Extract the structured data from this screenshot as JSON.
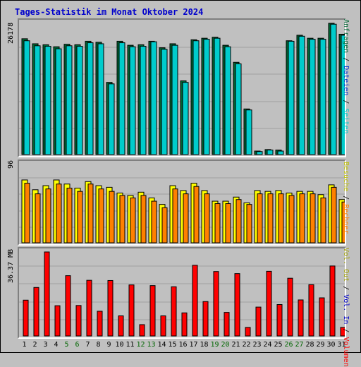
{
  "title": "Tages-Statistik im Monat Oktober 2024",
  "colors": {
    "background": "#c0c0c0",
    "title": "#0000cc",
    "anfragen": "#006633",
    "dateien": "#0033cc",
    "seiten": "#00cccc",
    "besuche": "#ffff00",
    "rechner": "#ff8000",
    "vol_out": "#c0c000",
    "vol_in": "#0000cc",
    "volumen": "#ff0000",
    "weekend_day": "#006600"
  },
  "labels": {
    "top_max": "26178",
    "mid_max": "96",
    "bot_max": "36.37 MB",
    "top_right": [
      "Anfragen",
      "Dateien",
      "Seiten"
    ],
    "mid_right": [
      "Besuche",
      "Rechner"
    ],
    "bot_right": [
      "Vol. Out",
      "Vol. In",
      "Volumen"
    ],
    "separator": " / "
  },
  "chart_data": [
    {
      "type": "bar",
      "title": "Tages-Statistik im Monat Oktober 2024",
      "categories": [
        "1",
        "2",
        "3",
        "4",
        "5",
        "6",
        "7",
        "8",
        "9",
        "10",
        "11",
        "12",
        "13",
        "14",
        "15",
        "16",
        "17",
        "18",
        "19",
        "20",
        "21",
        "22",
        "23",
        "24",
        "25",
        "26",
        "27",
        "28",
        "29",
        "30",
        "31"
      ],
      "weekend_days": [
        "5",
        "6",
        "12",
        "13",
        "19",
        "20",
        "26",
        "27"
      ],
      "ylim": [
        0,
        26178
      ],
      "series": [
        {
          "name": "Anfragen",
          "values": [
            23100,
            22100,
            21900,
            21500,
            22000,
            21900,
            22600,
            22400,
            14400,
            22600,
            21800,
            21900,
            22600,
            21300,
            22100,
            14700,
            22900,
            23200,
            23400,
            21800,
            18400,
            9100,
            700,
            1000,
            900,
            22700,
            23800,
            23200,
            23200,
            26178,
            24000
          ]
        },
        {
          "name": "Dateien",
          "values": [
            22700,
            21700,
            21600,
            21100,
            21700,
            21600,
            22300,
            22100,
            14100,
            22300,
            21500,
            21600,
            22500,
            21000,
            21800,
            14400,
            22700,
            23000,
            23200,
            21500,
            18100,
            8900,
            600,
            900,
            700,
            22600,
            23600,
            23000,
            23000,
            26000,
            23800
          ]
        }
      ]
    },
    {
      "type": "bar",
      "categories": [
        "1",
        "2",
        "3",
        "4",
        "5",
        "6",
        "7",
        "8",
        "9",
        "10",
        "11",
        "12",
        "13",
        "14",
        "15",
        "16",
        "17",
        "18",
        "19",
        "20",
        "21",
        "22",
        "23",
        "24",
        "25",
        "26",
        "27",
        "28",
        "29",
        "30",
        "31"
      ],
      "ylim": [
        0,
        96
      ],
      "series": [
        {
          "name": "Besuche",
          "values": [
            77,
            65,
            70,
            77,
            72,
            67,
            75,
            70,
            68,
            61,
            58,
            62,
            55,
            47,
            70,
            64,
            73,
            64,
            51,
            51,
            56,
            49,
            64,
            63,
            64,
            61,
            63,
            63,
            59,
            71,
            53
          ]
        },
        {
          "name": "Rechner",
          "values": [
            73,
            60,
            66,
            72,
            67,
            63,
            72,
            66,
            63,
            58,
            55,
            58,
            51,
            43,
            66,
            60,
            69,
            60,
            48,
            48,
            53,
            47,
            60,
            60,
            60,
            58,
            60,
            60,
            55,
            68,
            50
          ]
        }
      ]
    },
    {
      "type": "bar",
      "categories": [
        "1",
        "2",
        "3",
        "4",
        "5",
        "6",
        "7",
        "8",
        "9",
        "10",
        "11",
        "12",
        "13",
        "14",
        "15",
        "16",
        "17",
        "18",
        "19",
        "20",
        "21",
        "22",
        "23",
        "24",
        "25",
        "26",
        "27",
        "28",
        "29",
        "30",
        "31"
      ],
      "ylim": [
        0,
        36.37
      ],
      "series": [
        {
          "name": "Volumen",
          "values": [
            15.5,
            21.0,
            36.37,
            13.1,
            26.1,
            13.2,
            24.1,
            10.7,
            24.0,
            8.7,
            22.1,
            4.9,
            21.8,
            8.7,
            21.3,
            10.0,
            30.6,
            14.9,
            27.9,
            10.2,
            27.0,
            3.7,
            12.5,
            28.0,
            13.6,
            25.0,
            15.6,
            22.2,
            16.5,
            30.3,
            3.7
          ]
        }
      ]
    }
  ]
}
